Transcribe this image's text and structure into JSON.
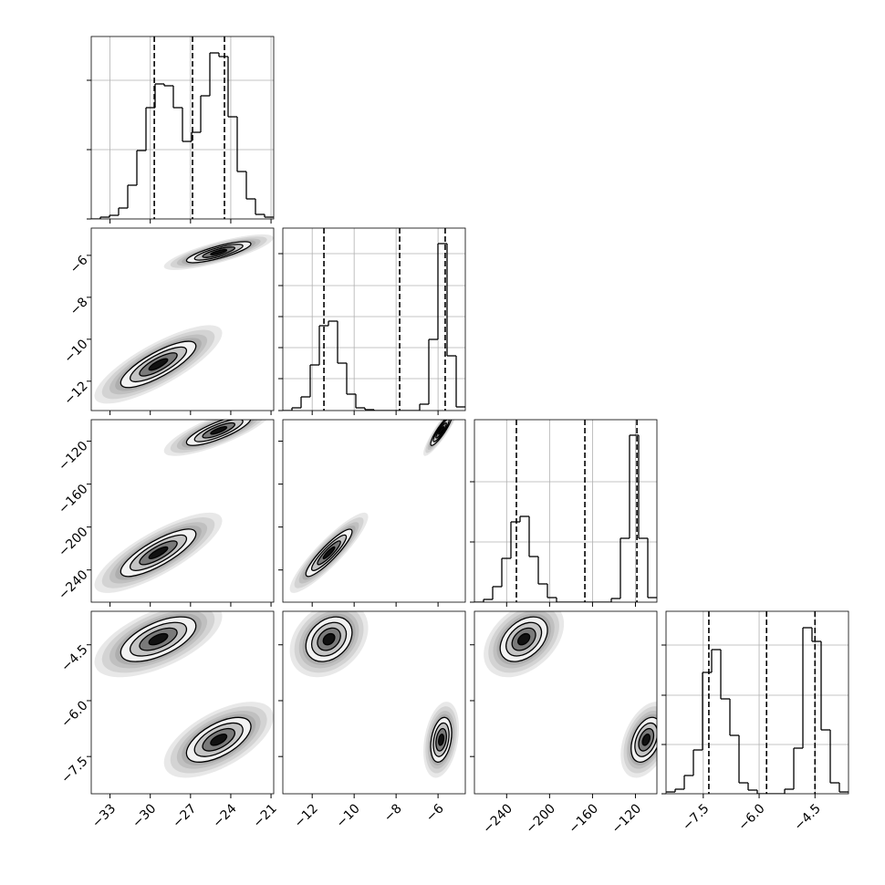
{
  "chart_data": {
    "type": "corner",
    "params": [
      {
        "lim": [
          -34.4,
          -20.8
        ],
        "ticks": [
          {
            "value": -33,
            "label": "−33"
          },
          {
            "value": -30,
            "label": "−30"
          },
          {
            "value": -27,
            "label": "−27"
          },
          {
            "value": -24,
            "label": "−24"
          },
          {
            "value": -21,
            "label": "−21"
          }
        ]
      },
      {
        "lim": [
          -13.4,
          -4.7
        ],
        "ticks": [
          {
            "value": -12,
            "label": "−12"
          },
          {
            "value": -10,
            "label": "−10"
          },
          {
            "value": -8,
            "label": "−8"
          },
          {
            "value": -6,
            "label": "−6"
          }
        ]
      },
      {
        "lim": [
          -270,
          -100
        ],
        "ticks": [
          {
            "value": -240,
            "label": "−240"
          },
          {
            "value": -200,
            "label": "−200"
          },
          {
            "value": -160,
            "label": "−160"
          },
          {
            "value": -120,
            "label": "−120"
          }
        ]
      },
      {
        "lim": [
          -8.5,
          -3.6
        ],
        "ticks": [
          {
            "value": -7.5,
            "label": "−7.5"
          },
          {
            "value": -6.0,
            "label": "−6.0"
          },
          {
            "value": -4.5,
            "label": "−4.5"
          }
        ]
      }
    ],
    "hists": [
      {
        "bins": [
          -34.4,
          -33.72,
          -33.04,
          -32.36,
          -31.68,
          -31,
          -30.32,
          -29.64,
          -28.96,
          -28.28,
          -27.6,
          -26.92,
          -26.24,
          -25.56,
          -24.88,
          -24.2,
          -23.52,
          -22.84,
          -22.16,
          -21.48,
          -20.8
        ],
        "counts": [
          0,
          2,
          4,
          12,
          37,
          75,
          122,
          148,
          146,
          122,
          85,
          95,
          135,
          182,
          178,
          112,
          52,
          22,
          5,
          2
        ],
        "ylim": [
          0,
          200
        ],
        "yticks": [
          0,
          76,
          152
        ],
        "quantiles": [
          -29.7,
          -26.85,
          -24.47
        ]
      },
      {
        "bins": [
          -13.4,
          -12.965,
          -12.53,
          -12.095,
          -11.66,
          -11.225,
          -10.79,
          -10.355,
          -9.92,
          -9.485,
          -9.05,
          -8.615,
          -8.18,
          -7.745,
          -7.31,
          -6.875,
          -6.44,
          -6.005,
          -5.57,
          -5.135,
          -4.7
        ],
        "counts": [
          0,
          3,
          15,
          50,
          93,
          98,
          52,
          18,
          3,
          1,
          0,
          0,
          0,
          0,
          0,
          7,
          78,
          183,
          60,
          4
        ],
        "ylim": [
          0,
          200
        ],
        "yticks": [
          0,
          35,
          69,
          103,
          137,
          172
        ],
        "quantiles": [
          -11.44,
          -7.83,
          -5.66
        ]
      },
      {
        "bins": [
          -270,
          -261.5,
          -253,
          -244.5,
          -236,
          -227.5,
          -219,
          -210.5,
          -202,
          -193.5,
          -185,
          -176.5,
          -168,
          -159.5,
          -151,
          -142.5,
          -134,
          -125.5,
          -117,
          -108.5,
          -100
        ],
        "counts": [
          0,
          3,
          17,
          48,
          88,
          94,
          50,
          20,
          5,
          0,
          0,
          0,
          0,
          0,
          0,
          4,
          70,
          183,
          70,
          5
        ],
        "ylim": [
          0,
          200
        ],
        "yticks": [
          0,
          66,
          132
        ],
        "quantiles": [
          -230.9,
          -167.1,
          -118.6
        ]
      },
      {
        "bins": [
          -8.5,
          -8.255,
          -8.01,
          -7.765,
          -7.52,
          -7.275,
          -7.03,
          -6.785,
          -6.54,
          -6.295,
          -6.05,
          -5.805,
          -5.56,
          -5.315,
          -5.07,
          -4.825,
          -4.58,
          -4.335,
          -4.09,
          -3.845,
          -3.6
        ],
        "counts": [
          2,
          5,
          20,
          48,
          133,
          158,
          104,
          64,
          12,
          4,
          0,
          0,
          0,
          5,
          50,
          182,
          167,
          70,
          12,
          2
        ],
        "ylim": [
          0,
          200
        ],
        "yticks": [
          0,
          54,
          108,
          163
        ],
        "quantiles": [
          -7.35,
          -5.8,
          -4.5
        ]
      }
    ],
    "modes": [
      {
        "mean": [
          -24.9,
          -5.85,
          -110,
          -7.05
        ],
        "std": [
          1.2,
          0.25,
          7,
          0.3
        ]
      },
      {
        "mean": [
          -29.4,
          -11.2,
          -224,
          -4.35
        ],
        "std": [
          1.4,
          0.55,
          11,
          0.3
        ]
      }
    ],
    "corr": [
      [
        1,
        0.8,
        0.8,
        0.6
      ],
      [
        0.8,
        1,
        0.9,
        0.3
      ],
      [
        0.8,
        0.9,
        1,
        0.4
      ],
      [
        0.6,
        0.3,
        0.4,
        1
      ]
    ],
    "grid": true
  }
}
